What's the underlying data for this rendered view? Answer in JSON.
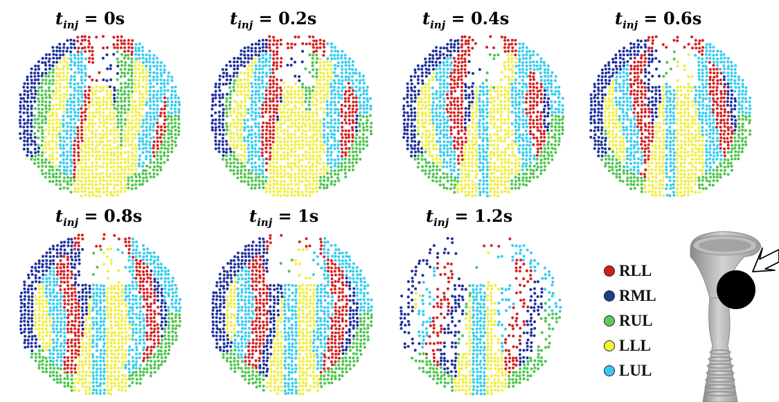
{
  "panels": [
    {
      "id": "p0",
      "sub": "inj",
      "value": "0s"
    },
    {
      "id": "p1",
      "sub": "inj",
      "value": "0.2s"
    },
    {
      "id": "p2",
      "sub": "inj",
      "value": "0.4s"
    },
    {
      "id": "p3",
      "sub": "inj",
      "value": "0.6s"
    },
    {
      "id": "p4",
      "sub": "inj",
      "value": "0.8s"
    },
    {
      "id": "p5",
      "sub": "inj",
      "value": "1s"
    },
    {
      "id": "p6",
      "sub": "inj",
      "value": "1.2s"
    }
  ],
  "panel_prefix": "t",
  "equals": " = ",
  "legend": [
    {
      "label": "RLL",
      "color": "#cc1f1f"
    },
    {
      "label": "RML",
      "color": "#1f3e8a"
    },
    {
      "label": "RUL",
      "color": "#5ec95e"
    },
    {
      "label": "LLL",
      "color": "#f2f23a"
    },
    {
      "label": "LUL",
      "color": "#39c6f0"
    }
  ],
  "colors": {
    "RLL": "#d42020",
    "RML": "#1c2f9c",
    "RUL": "#4cc44c",
    "LLL": "#f0ee40",
    "LUL": "#33ccee"
  },
  "icons": {
    "airway": "airway-model-icon",
    "arrow": "injection-arrow-icon",
    "particle": "particle-source-icon"
  }
}
